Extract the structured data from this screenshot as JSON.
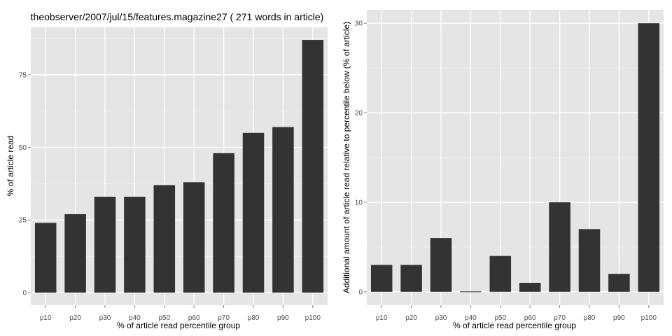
{
  "chart_data": [
    {
      "type": "bar",
      "title": "theobserver/2007/jul/15/features.magazine27 ( 271 words in article)",
      "xlabel": "% of article read percentile group",
      "ylabel": "% of article read",
      "categories": [
        "p10",
        "p20",
        "p30",
        "p40",
        "p50",
        "p60",
        "p70",
        "p80",
        "p90",
        "p100"
      ],
      "values": [
        24,
        27,
        33,
        33,
        37,
        38,
        48,
        55,
        57,
        87
      ],
      "ylim": [
        -4.35,
        91.35
      ],
      "yticks": [
        0,
        25,
        50,
        75
      ],
      "ytick_labels": [
        "0",
        "25",
        "50",
        "75"
      ],
      "grid": true,
      "colors": {
        "bar": "#333333",
        "panel": "#e5e5e5",
        "grid_major": "#ffffff",
        "grid_minor": "#f2f2f2"
      }
    },
    {
      "type": "bar",
      "title": "",
      "xlabel": "% of article read percentile group",
      "ylabel": "Additional amount of article read relative to percentile below (% of article)",
      "categories": [
        "p10",
        "p20",
        "p30",
        "p40",
        "p50",
        "p60",
        "p70",
        "p80",
        "p90",
        "p100"
      ],
      "values": [
        3,
        3,
        6,
        0,
        4,
        1,
        10,
        7,
        2,
        30
      ],
      "ylim": [
        -1.5,
        31.5
      ],
      "yticks": [
        0,
        10,
        20,
        30
      ],
      "ytick_labels": [
        "0",
        "10",
        "20",
        "30"
      ],
      "grid": true,
      "colors": {
        "bar": "#333333",
        "panel": "#e5e5e5",
        "grid_major": "#ffffff",
        "grid_minor": "#f2f2f2"
      }
    }
  ]
}
